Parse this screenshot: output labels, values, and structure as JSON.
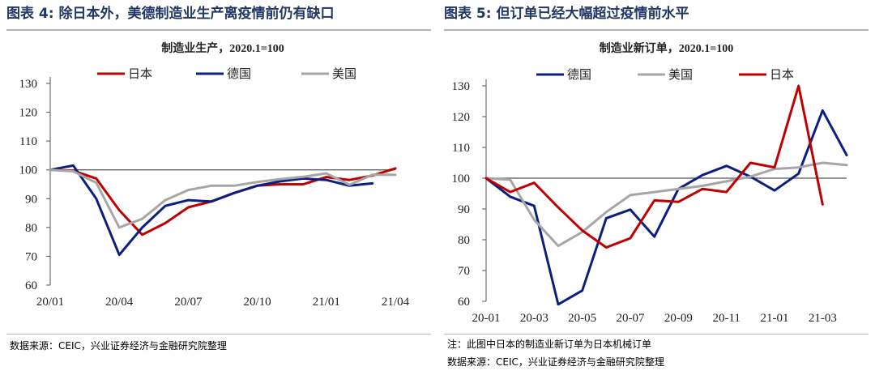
{
  "chart_data": [
    {
      "type": "line",
      "figure_title": "图表 4: 除日本外，美德制造业生产离疫情前仍有缺口",
      "title": "制造业生产，2020.1=100",
      "source": "数据来源：CEIC，兴业证券经济与金融研究院整理",
      "x": [
        "20/01",
        "20/02",
        "20/03",
        "20/04",
        "20/05",
        "20/06",
        "20/07",
        "20/08",
        "20/09",
        "20/10",
        "20/11",
        "20/12",
        "21/01",
        "21/02",
        "21/03",
        "21/04"
      ],
      "tick_labels": [
        "20/01",
        "20/04",
        "20/07",
        "20/10",
        "21/01",
        "21/04"
      ],
      "ylim": [
        60,
        130
      ],
      "yticks": [
        60,
        70,
        80,
        90,
        100,
        110,
        120,
        130
      ],
      "baseline": 100,
      "legend_position": "top",
      "series": [
        {
          "name": "日本",
          "color": "#c00000",
          "values": [
            100,
            99.7,
            97,
            86,
            77.5,
            81.5,
            87,
            89,
            92,
            94.5,
            95,
            95,
            97.5,
            96.5,
            98,
            100.5
          ]
        },
        {
          "name": "德国",
          "color": "#0b1f80",
          "values": [
            100,
            101.5,
            90,
            70.5,
            80,
            87.5,
            89.5,
            89,
            92,
            94.5,
            96,
            97,
            96.5,
            94.5,
            95.3,
            null
          ]
        },
        {
          "name": "美国",
          "color": "#a6a6a6",
          "values": [
            100,
            99.5,
            95.5,
            80,
            83,
            89.5,
            93,
            94.5,
            94.5,
            95.8,
            96.8,
            97.6,
            98.8,
            94.8,
            98.3,
            98.3
          ]
        }
      ]
    },
    {
      "type": "line",
      "figure_title": "图表 5: 但订单已经大幅超过疫情前水平",
      "title": "制造业新订单，2020.1=100",
      "note": "注：此图中日本的制造业新订单为日本机械订单",
      "source": "数据来源：CEIC，兴业证券经济与金融研究院整理",
      "x": [
        "20-01",
        "20-02",
        "20-03",
        "20-04",
        "20-05",
        "20-06",
        "20-07",
        "20-08",
        "20-09",
        "20-10",
        "20-11",
        "20-12",
        "21-01",
        "21-02",
        "21-03",
        "21-04"
      ],
      "tick_labels": [
        "20-01",
        "20-03",
        "20-05",
        "20-07",
        "20-09",
        "20-11",
        "21-01",
        "21-03"
      ],
      "ylim": [
        60,
        130
      ],
      "yticks": [
        60,
        70,
        80,
        90,
        100,
        110,
        120,
        130
      ],
      "baseline": 100,
      "legend_position": "top",
      "series": [
        {
          "name": "德国",
          "color": "#0b1f80",
          "values": [
            100,
            94,
            91,
            59,
            63.5,
            87,
            89.8,
            81,
            96.5,
            101,
            104,
            100.5,
            96,
            101.5,
            122,
            107.5
          ]
        },
        {
          "name": "美国",
          "color": "#a6a6a6",
          "values": [
            100,
            99.5,
            86.5,
            78,
            82.5,
            89,
            94.5,
            95.5,
            96.5,
            97.5,
            99,
            100.5,
            103,
            103.5,
            105,
            104.3
          ]
        },
        {
          "name": "日本",
          "color": "#c00000",
          "values": [
            100,
            95.5,
            98.5,
            90.5,
            83,
            77.5,
            80.5,
            92.8,
            92.3,
            96.5,
            95.5,
            105,
            103.5,
            130,
            91.5,
            null
          ]
        }
      ]
    }
  ]
}
